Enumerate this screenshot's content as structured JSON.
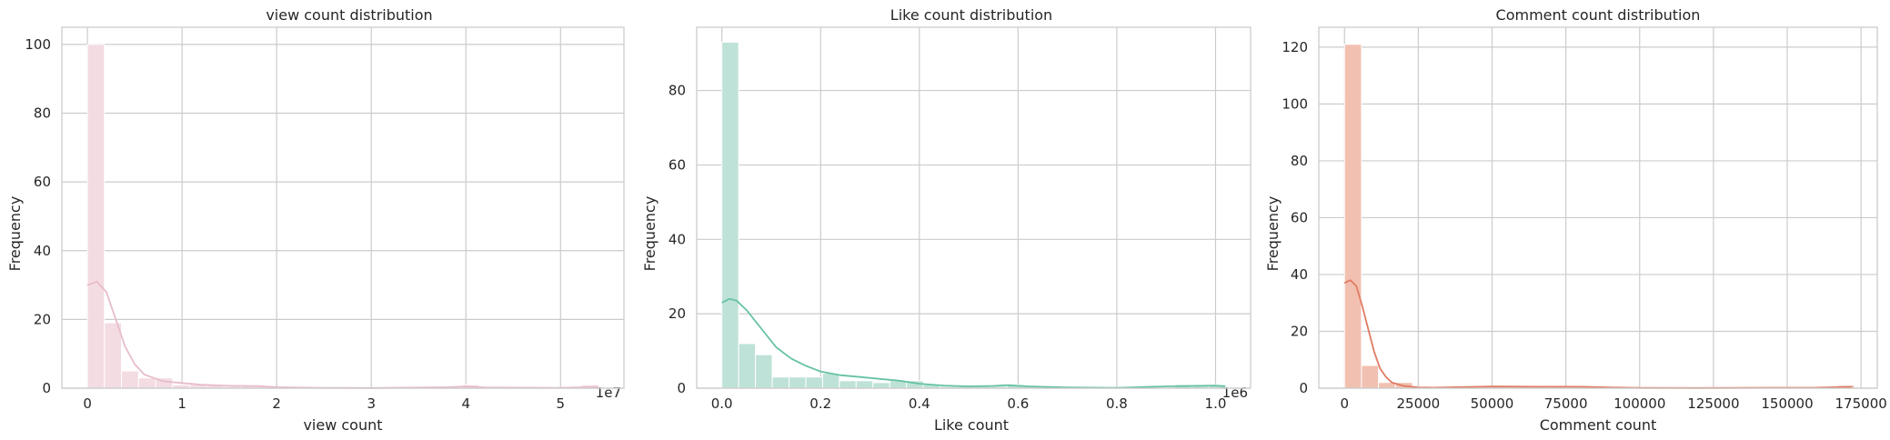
{
  "chart_data": [
    {
      "type": "bar",
      "subtype": "histogram-with-kde",
      "title": "view count distribution",
      "xlabel": "view count",
      "ylabel": "Frequency",
      "x_multiplier": "1e7",
      "xlim": [
        -2700000,
        56700000
      ],
      "ylim": [
        0,
        105
      ],
      "xticks": [
        0,
        10000000,
        20000000,
        30000000,
        40000000,
        50000000
      ],
      "xtick_labels": [
        "0",
        "1",
        "2",
        "3",
        "4",
        "5"
      ],
      "yticks": [
        0,
        20,
        40,
        60,
        80,
        100
      ],
      "ytick_labels": [
        "0",
        "20",
        "40",
        "60",
        "80",
        "100"
      ],
      "bin_start": 0,
      "bin_width": 1800000,
      "values": [
        100,
        19,
        5,
        3,
        3,
        1,
        1,
        1,
        0.5,
        0.5,
        0.5,
        0,
        0,
        0,
        0,
        0,
        0,
        0,
        0,
        0,
        0,
        0,
        1,
        0,
        0,
        0,
        0,
        0,
        0,
        1
      ],
      "kde": [
        [
          0,
          30
        ],
        [
          1000000,
          31
        ],
        [
          2000000,
          28
        ],
        [
          3000000,
          20
        ],
        [
          4000000,
          12
        ],
        [
          5000000,
          7
        ],
        [
          6000000,
          4
        ],
        [
          7000000,
          3
        ],
        [
          8000000,
          2
        ],
        [
          10000000,
          1.5
        ],
        [
          12000000,
          1
        ],
        [
          15000000,
          0.7
        ],
        [
          18000000,
          0.6
        ],
        [
          20000000,
          0.3
        ],
        [
          25000000,
          0.1
        ],
        [
          30000000,
          0.05
        ],
        [
          38000000,
          0.3
        ],
        [
          40000000,
          0.5
        ],
        [
          42000000,
          0.2
        ],
        [
          50000000,
          0.1
        ],
        [
          54000000,
          0.4
        ]
      ],
      "bar_color": "#f3dce2",
      "kde_color": "#e8bccb",
      "grid": true
    },
    {
      "type": "bar",
      "subtype": "histogram-with-kde",
      "title": "Like count distribution",
      "xlabel": "Like count",
      "ylabel": "Frequency",
      "x_multiplier": "1e6",
      "xlim": [
        -51000,
        1071000
      ],
      "ylim": [
        0,
        97
      ],
      "xticks": [
        0,
        200000,
        400000,
        600000,
        800000,
        1000000
      ],
      "xtick_labels": [
        "0.0",
        "0.2",
        "0.4",
        "0.6",
        "0.8",
        "1.0"
      ],
      "yticks": [
        0,
        20,
        40,
        60,
        80
      ],
      "ytick_labels": [
        "0",
        "20",
        "40",
        "60",
        "80"
      ],
      "bin_start": 0,
      "bin_width": 34000,
      "values": [
        93,
        12,
        9,
        3,
        3,
        3,
        4,
        2,
        2,
        1.5,
        2,
        2,
        1,
        0.5,
        0.5,
        0.5,
        0.5,
        1,
        0.5,
        0,
        0,
        0,
        0,
        0,
        0,
        0,
        0,
        1,
        1,
        1
      ],
      "kde": [
        [
          0,
          23
        ],
        [
          15000,
          24
        ],
        [
          30000,
          23.5
        ],
        [
          50000,
          21
        ],
        [
          80000,
          16
        ],
        [
          110000,
          11
        ],
        [
          140000,
          8
        ],
        [
          170000,
          6
        ],
        [
          200000,
          4.5
        ],
        [
          240000,
          3.5
        ],
        [
          280000,
          3
        ],
        [
          320000,
          2.5
        ],
        [
          360000,
          2
        ],
        [
          400000,
          1.2
        ],
        [
          450000,
          0.7
        ],
        [
          500000,
          0.5
        ],
        [
          550000,
          0.6
        ],
        [
          580000,
          0.8
        ],
        [
          620000,
          0.5
        ],
        [
          700000,
          0.2
        ],
        [
          800000,
          0.1
        ],
        [
          900000,
          0.5
        ],
        [
          1000000,
          0.7
        ],
        [
          1020000,
          0.5
        ]
      ],
      "bar_color": "#bfe2d8",
      "kde_color": "#66c2a5",
      "grid": true
    },
    {
      "type": "bar",
      "subtype": "histogram-with-kde",
      "title": "Comment count distribution",
      "xlabel": "Comment count",
      "ylabel": "Frequency",
      "x_multiplier": "",
      "xlim": [
        -8700,
        180500
      ],
      "ylim": [
        0,
        127
      ],
      "xticks": [
        0,
        25000,
        50000,
        75000,
        100000,
        125000,
        150000,
        175000
      ],
      "xtick_labels": [
        "0",
        "25000",
        "50000",
        "75000",
        "100000",
        "125000",
        "150000",
        "175000"
      ],
      "yticks": [
        0,
        20,
        40,
        60,
        80,
        100,
        120
      ],
      "ytick_labels": [
        "0",
        "20",
        "40",
        "60",
        "80",
        "100",
        "120"
      ],
      "bin_start": 0,
      "bin_width": 5760,
      "values": [
        121,
        8,
        2,
        2,
        0.5,
        0.5,
        0.5,
        0.5,
        0.5,
        0.5,
        0.5,
        0.5,
        0.5,
        0.5,
        0.5,
        0,
        0,
        0,
        0,
        0,
        0,
        0,
        0,
        0,
        0,
        0,
        0,
        0,
        0,
        1
      ],
      "kde": [
        [
          0,
          37
        ],
        [
          2000,
          38
        ],
        [
          4000,
          36
        ],
        [
          6000,
          29
        ],
        [
          8000,
          21
        ],
        [
          10000,
          13
        ],
        [
          12000,
          7
        ],
        [
          14000,
          4
        ],
        [
          16000,
          2
        ],
        [
          20000,
          0.8
        ],
        [
          25000,
          0.3
        ],
        [
          30000,
          0.2
        ],
        [
          50000,
          0.6
        ],
        [
          65000,
          0.5
        ],
        [
          80000,
          0.5
        ],
        [
          90000,
          0.3
        ],
        [
          100000,
          0.1
        ],
        [
          120000,
          0.05
        ],
        [
          160000,
          0.2
        ],
        [
          172000,
          0.5
        ]
      ],
      "bar_color": "#f2c0b1",
      "kde_color": "#e07b64",
      "grid": true
    }
  ]
}
